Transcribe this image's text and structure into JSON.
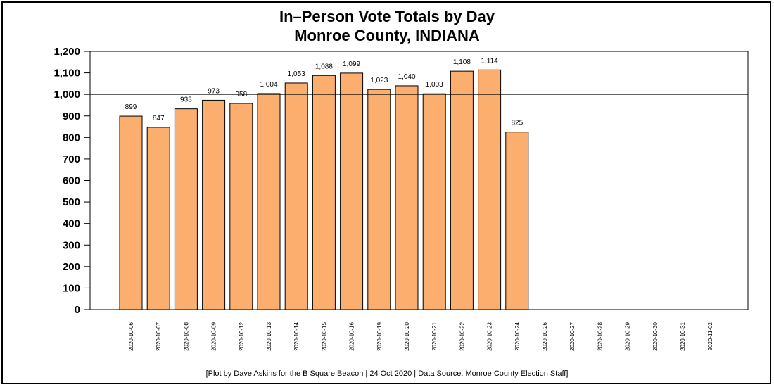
{
  "chart_data": {
    "type": "bar",
    "title": "In–Person Vote Totals by Day",
    "subtitle": "Monroe County, INDIANA",
    "footer": "[Plot by Dave Askins for the B Square Beacon | 24 Oct 2020 | Data Source: Monroe County Election Staff]",
    "categories": [
      "2020-10-06",
      "2020-10-07",
      "2020-10-08",
      "2020-10-09",
      "2020-10-12",
      "2020-10-13",
      "2020-10-14",
      "2020-10-15",
      "2020-10-16",
      "2020-10-19",
      "2020-10-20",
      "2020-10-21",
      "2020-10-22",
      "2020-10-23",
      "2020-10-24",
      "2020-10-26",
      "2020-10-27",
      "2020-10-28",
      "2020-10-29",
      "2020-10-30",
      "2020-10-31",
      "2020-11-02"
    ],
    "values": [
      899,
      847,
      933,
      973,
      958,
      1004,
      1053,
      1088,
      1099,
      1023,
      1040,
      1003,
      1108,
      1114,
      825,
      null,
      null,
      null,
      null,
      null,
      null,
      null
    ],
    "data_labels": [
      "899",
      "847",
      "933",
      "973",
      "958",
      "1,004",
      "1,053",
      "1,088",
      "1,099",
      "1,023",
      "1,040",
      "1,003",
      "1,108",
      "1,114",
      "825",
      "",
      "",
      "",
      "",
      "",
      "",
      ""
    ],
    "yticks": [
      0,
      100,
      200,
      300,
      400,
      500,
      600,
      700,
      800,
      900,
      1000,
      1100,
      1200
    ],
    "ytick_labels": [
      "0",
      "100",
      "200",
      "300",
      "400",
      "500",
      "600",
      "700",
      "800",
      "900",
      "1,000",
      "1,100",
      "1,200"
    ],
    "ylim": [
      0,
      1200
    ],
    "reference_line": 1000,
    "bar_color": "#fbae6e",
    "grid": false,
    "xlabel": "",
    "ylabel": ""
  }
}
